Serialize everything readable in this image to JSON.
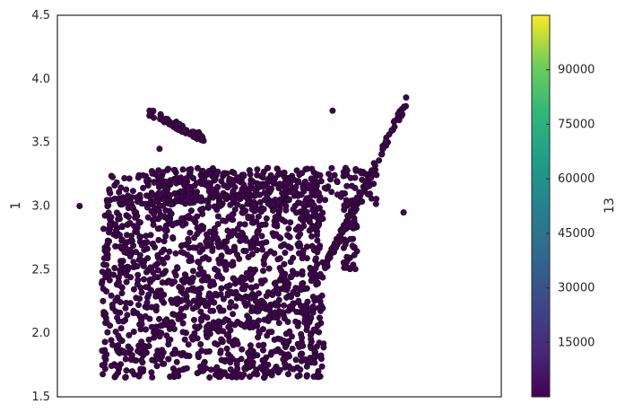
{
  "chart_data": {
    "type": "scatter",
    "title": "",
    "xlabel": "",
    "ylabel": "1",
    "ylim": [
      1.5,
      4.5
    ],
    "yticks": [
      "1.5",
      "2.0",
      "2.5",
      "3.0",
      "3.5",
      "4.0",
      "4.5"
    ],
    "xticks": [],
    "grid": false,
    "legend": "none",
    "point_color": "#440154",
    "point_edge_color": "#111111",
    "colorbar": {
      "label": "13",
      "colormap": "viridis",
      "range": [
        0,
        105000
      ],
      "ticks": [
        "15000",
        "30000",
        "45000",
        "60000",
        "75000",
        "90000"
      ],
      "tick_values": [
        15000,
        30000,
        45000,
        60000,
        75000,
        90000
      ]
    },
    "clusters_description": "dense point cloud; values estimated from axes",
    "series": [
      {
        "points_y_sample": [
          3.85,
          3.78,
          3.72,
          3.65,
          3.6,
          3.55,
          3.5,
          3.62,
          3.75,
          3.88,
          3.86,
          3.8,
          3.7,
          3.55,
          3.38,
          3.3,
          3.25,
          3.18,
          3.12,
          3.08,
          3.02,
          2.95,
          3.0,
          2.9,
          2.8,
          2.7,
          2.6,
          2.5,
          2.4,
          2.3,
          2.2,
          2.1,
          2.0,
          1.9,
          1.85,
          1.8,
          1.75,
          1.68,
          1.62
        ]
      }
    ]
  }
}
